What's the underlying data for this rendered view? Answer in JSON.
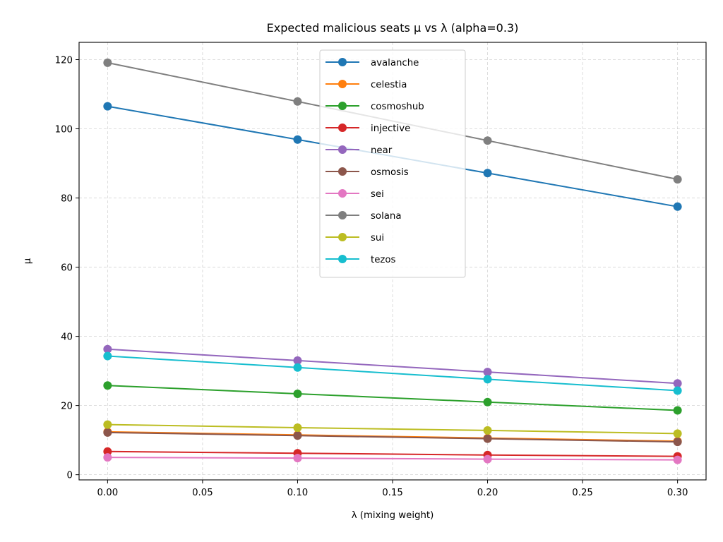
{
  "chart_data": {
    "type": "line",
    "title": "Expected malicious seats μ vs λ (alpha=0.3)",
    "xlabel": "λ (mixing weight)",
    "ylabel": "μ",
    "x": [
      0.0,
      0.1,
      0.2,
      0.3
    ],
    "xlim": [
      -0.015,
      0.315
    ],
    "ylim": [
      -1.5,
      125
    ],
    "xticks": [
      0.0,
      0.05,
      0.1,
      0.15,
      0.2,
      0.25,
      0.3
    ],
    "xtick_labels": [
      "0.00",
      "0.05",
      "0.10",
      "0.15",
      "0.20",
      "0.25",
      "0.30"
    ],
    "yticks": [
      0,
      20,
      40,
      60,
      80,
      100,
      120
    ],
    "ytick_labels": [
      "0",
      "20",
      "40",
      "60",
      "80",
      "100",
      "120"
    ],
    "grid": true,
    "legend_position": "top-center",
    "series": [
      {
        "name": "avalanche",
        "color": "#1f77b4",
        "values": [
          106.5,
          96.9,
          87.2,
          77.5
        ]
      },
      {
        "name": "celestia",
        "color": "#ff7f0e",
        "values": [
          12.4,
          11.5,
          10.6,
          9.7
        ]
      },
      {
        "name": "cosmoshub",
        "color": "#2ca02c",
        "values": [
          25.8,
          23.4,
          21.0,
          18.6
        ]
      },
      {
        "name": "injective",
        "color": "#d62728",
        "values": [
          6.7,
          6.2,
          5.7,
          5.3
        ]
      },
      {
        "name": "near",
        "color": "#9467bd",
        "values": [
          36.3,
          33.0,
          29.7,
          26.4
        ]
      },
      {
        "name": "osmosis",
        "color": "#8c564b",
        "values": [
          12.2,
          11.3,
          10.4,
          9.5
        ]
      },
      {
        "name": "sei",
        "color": "#e377c2",
        "values": [
          5.0,
          4.8,
          4.5,
          4.3
        ]
      },
      {
        "name": "solana",
        "color": "#7f7f7f",
        "values": [
          119.1,
          107.9,
          96.6,
          85.4
        ]
      },
      {
        "name": "sui",
        "color": "#bcbd22",
        "values": [
          14.5,
          13.6,
          12.8,
          11.9
        ]
      },
      {
        "name": "tezos",
        "color": "#17becf",
        "values": [
          34.3,
          31.0,
          27.6,
          24.3
        ]
      }
    ]
  }
}
